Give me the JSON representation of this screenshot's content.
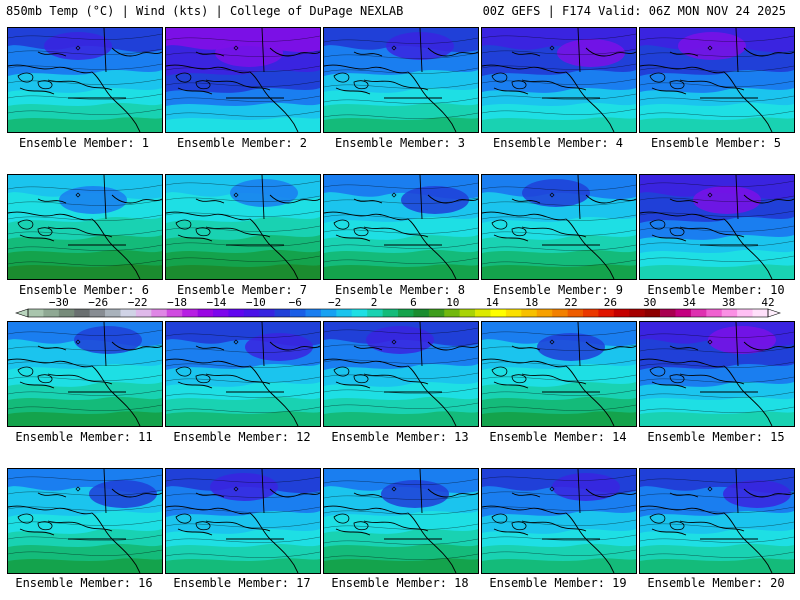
{
  "header": {
    "left": "850mb Temp (°C) | Wind (kts) | College of DuPage NEXLAB",
    "right": "00Z GEFS | F174 Valid: 06Z MON NOV 24 2025"
  },
  "members": [
    {
      "label": "Ensemble Member: 1",
      "warmth": 2
    },
    {
      "label": "Ensemble Member: 2",
      "warmth": 0
    },
    {
      "label": "Ensemble Member: 3",
      "warmth": 2
    },
    {
      "label": "Ensemble Member: 4",
      "warmth": 1
    },
    {
      "label": "Ensemble Member: 5",
      "warmth": 1
    },
    {
      "label": "Ensemble Member: 6",
      "warmth": 4
    },
    {
      "label": "Ensemble Member: 7",
      "warmth": 4
    },
    {
      "label": "Ensemble Member: 8",
      "warmth": 3
    },
    {
      "label": "Ensemble Member: 9",
      "warmth": 3
    },
    {
      "label": "Ensemble Member: 10",
      "warmth": 1
    },
    {
      "label": "Ensemble Member: 11",
      "warmth": 3
    },
    {
      "label": "Ensemble Member: 12",
      "warmth": 2
    },
    {
      "label": "Ensemble Member: 13",
      "warmth": 2
    },
    {
      "label": "Ensemble Member: 14",
      "warmth": 3
    },
    {
      "label": "Ensemble Member: 15",
      "warmth": 1
    },
    {
      "label": "Ensemble Member: 16",
      "warmth": 3
    },
    {
      "label": "Ensemble Member: 17",
      "warmth": 2
    },
    {
      "label": "Ensemble Member: 18",
      "warmth": 3
    },
    {
      "label": "Ensemble Member: 19",
      "warmth": 2
    },
    {
      "label": "Ensemble Member: 20",
      "warmth": 2
    }
  ],
  "colorbar": {
    "ticks": [
      "−30",
      "−26",
      "−22",
      "−18",
      "−14",
      "−10",
      "−6",
      "−2",
      "2",
      "6",
      "10",
      "14",
      "18",
      "22",
      "26",
      "30",
      "34",
      "38",
      "42"
    ],
    "colors": [
      "#a9c5ad",
      "#8fa893",
      "#778b7a",
      "#6a6f70",
      "#878c92",
      "#a9b2bb",
      "#d0d3e6",
      "#dfb9ea",
      "#df86e5",
      "#d04be0",
      "#b71ee3",
      "#9a06e3",
      "#7d06ec",
      "#6006ef",
      "#4a12e8",
      "#3624e0",
      "#2040d8",
      "#1a5ee6",
      "#1a7ef0",
      "#17a1f2",
      "#1bc4ee",
      "#1edfe4",
      "#19d2b2",
      "#14bb7a",
      "#14a34c",
      "#1b8c2f",
      "#3d9c1c",
      "#72b80e",
      "#a8d306",
      "#dce900",
      "#ffff00",
      "#fbe000",
      "#f7c000",
      "#f7a000",
      "#f28000",
      "#ee5c00",
      "#ea3800",
      "#e01400",
      "#c40000",
      "#a60000",
      "#8c0000",
      "#a80050",
      "#c40080",
      "#de30b0",
      "#f060d0",
      "#fa90e4",
      "#ffc0f4",
      "#ffe0fa"
    ]
  },
  "fieldColors": [
    "#7b10e6",
    "#3a24e0",
    "#2040d8",
    "#1a7ef0",
    "#1bc4ee",
    "#1edfe4",
    "#19d2b2",
    "#14bb7a",
    "#14a34c",
    "#1b8c2f",
    "#72b80e",
    "#b8d806"
  ]
}
